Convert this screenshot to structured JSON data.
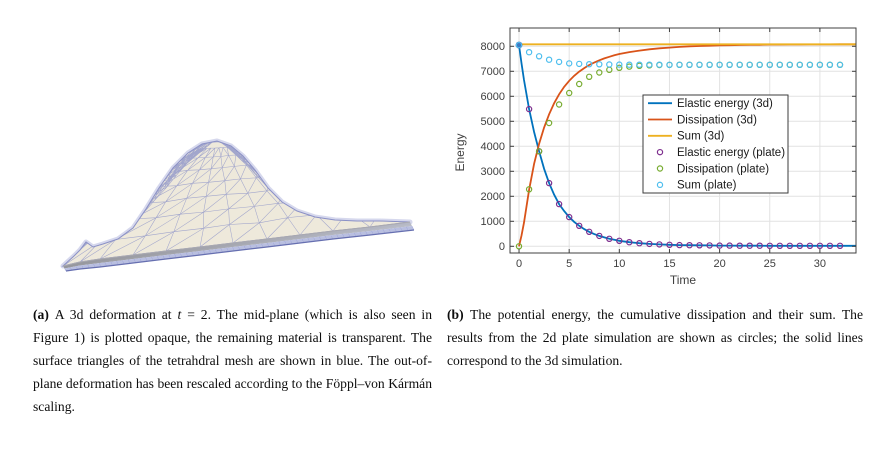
{
  "panel_a": {
    "caption_segments": [
      {
        "style": "bold",
        "text": "(a) "
      },
      {
        "style": "normal",
        "text": "A 3d deformation at "
      },
      {
        "style": "italic",
        "text": "t"
      },
      {
        "style": "normal",
        "text": " = 2.  The mid-plane (which is also seen in Figure 1) is plotted opaque, the remaining material is transparent. The surface triangles of the tetrahdral mesh are shown in blue. The out-of-plane deformation has been rescaled according to the Föppl–von Kármán scaling."
      }
    ],
    "mesh_colors": {
      "surface": "#EEE9DB",
      "wire": "#8F95C8",
      "halo": "#A3A9D8",
      "outline": "#8A90C6",
      "shadow_dark": "#8E8F94",
      "shadow_light": "#B3B6C2",
      "side_band": "#B9BFE0",
      "side_hatch": "#9CA3D6",
      "bottom_edge": "#666FB0",
      "contact": "#A9A9B0"
    }
  },
  "panel_b": {
    "caption_segments": [
      {
        "style": "bold",
        "text": "(b) "
      },
      {
        "style": "normal",
        "text": "The potential energy, the cumulative dissipation and their sum. The results from the 2d plate simulation are shown as circles; the solid lines correspond to the 3d simulation."
      }
    ]
  },
  "chart_data": {
    "type": "line",
    "title": "",
    "xlabel": "Time",
    "ylabel": "Energy",
    "xlim": [
      -0.9,
      33.6
    ],
    "ylim": [
      -268,
      8732
    ],
    "xticks": [
      0,
      5,
      10,
      15,
      20,
      25,
      30
    ],
    "yticks": [
      0,
      1000,
      2000,
      3000,
      4000,
      5000,
      6000,
      7000,
      8000
    ],
    "grid": true,
    "legend_position": "right-center",
    "colors": {
      "axis": "#404040",
      "grid": "#E2E2E2",
      "tick_label": "#404040",
      "legend_border": "#3b3b3b"
    },
    "start_marker": {
      "x": 0,
      "y": 8050,
      "color": "#3A7BC4",
      "radius": 3.4
    },
    "series": [
      {
        "name": "Elastic energy (3d)",
        "type": "line",
        "color": "#0072BD",
        "x": [
          0,
          0.25,
          0.5,
          1,
          1.5,
          2,
          2.5,
          3,
          3.5,
          4,
          4.5,
          5,
          5.5,
          6,
          6.5,
          7,
          7.5,
          8,
          8.5,
          9,
          9.5,
          10,
          11,
          12,
          13,
          14,
          15,
          16,
          17,
          18,
          19,
          20,
          21,
          22,
          23,
          24,
          25,
          26,
          27,
          28,
          29,
          30,
          31,
          32,
          33.6
        ],
        "y": [
          8050,
          7320,
          6650,
          5490,
          4570,
          3800,
          3100,
          2530,
          2070,
          1690,
          1410,
          1170,
          975,
          820,
          690,
          580,
          490,
          415,
          355,
          300,
          258,
          220,
          165,
          125,
          95,
          75,
          60,
          50,
          45,
          40,
          35,
          30,
          30,
          25,
          25,
          25,
          20,
          20,
          20,
          20,
          20,
          20,
          20,
          20,
          20
        ]
      },
      {
        "name": "Dissipation (3d)",
        "type": "line",
        "color": "#D95319",
        "x": [
          0,
          0.25,
          0.5,
          1,
          1.5,
          2,
          2.5,
          3,
          3.5,
          4,
          4.5,
          5,
          5.5,
          6,
          6.5,
          7,
          7.5,
          8,
          8.5,
          9,
          9.5,
          10,
          11,
          12,
          13,
          14,
          15,
          16,
          17,
          18,
          19,
          20,
          21,
          22,
          23,
          24,
          25,
          26,
          27,
          28,
          29,
          30,
          31,
          32,
          33.6
        ],
        "y": [
          0,
          430,
          950,
          2260,
          3300,
          4100,
          4750,
          5280,
          5720,
          6080,
          6380,
          6620,
          6820,
          6990,
          7130,
          7250,
          7350,
          7440,
          7515,
          7580,
          7640,
          7690,
          7770,
          7830,
          7880,
          7920,
          7950,
          7975,
          7995,
          8010,
          8025,
          8035,
          8045,
          8052,
          8057,
          8062,
          8066,
          8069,
          8071,
          8073,
          8075,
          8076,
          8077,
          8078,
          8080
        ]
      },
      {
        "name": "Sum (3d)",
        "type": "line",
        "color": "#EDB120",
        "x": [
          0,
          33.6
        ],
        "y": [
          8080,
          8080
        ]
      },
      {
        "name": "Elastic energy (plate)",
        "type": "scatter",
        "color": "#7E2F8E",
        "x": [
          0,
          1,
          2,
          3,
          4,
          5,
          6,
          7,
          8,
          9,
          10,
          11,
          12,
          13,
          14,
          15,
          16,
          17,
          18,
          19,
          20,
          21,
          22,
          23,
          24,
          25,
          26,
          27,
          28,
          29,
          30,
          31,
          32
        ],
        "y": [
          8050,
          5490,
          3800,
          2530,
          1690,
          1170,
          820,
          580,
          415,
          300,
          220,
          165,
          125,
          95,
          75,
          60,
          50,
          45,
          40,
          35,
          30,
          30,
          25,
          25,
          25,
          20,
          20,
          20,
          20,
          20,
          20,
          20,
          20
        ]
      },
      {
        "name": "Dissipation (plate)",
        "type": "scatter",
        "color": "#77AC30",
        "x": [
          0,
          1,
          2,
          3,
          4,
          5,
          6,
          7,
          8,
          9,
          10,
          11,
          12,
          13,
          14,
          15,
          16,
          17,
          18,
          19,
          20,
          21,
          22,
          23,
          24,
          25,
          26,
          27,
          28,
          29,
          30,
          31,
          32
        ],
        "y": [
          0,
          2280,
          3800,
          4930,
          5670,
          6130,
          6490,
          6780,
          6950,
          7060,
          7140,
          7190,
          7220,
          7240,
          7250,
          7255,
          7258,
          7259,
          7260,
          7260,
          7260,
          7260,
          7260,
          7260,
          7260,
          7260,
          7260,
          7260,
          7260,
          7260,
          7260,
          7260,
          7260
        ]
      },
      {
        "name": "Sum (plate)",
        "type": "scatter",
        "color": "#4DBEEE",
        "x": [
          0,
          1,
          2,
          3,
          4,
          5,
          6,
          7,
          8,
          9,
          10,
          11,
          12,
          13,
          14,
          15,
          16,
          17,
          18,
          19,
          20,
          21,
          22,
          23,
          24,
          25,
          26,
          27,
          28,
          29,
          30,
          31,
          32
        ],
        "y": [
          8050,
          7765,
          7600,
          7465,
          7375,
          7315,
          7295,
          7285,
          7278,
          7272,
          7268,
          7266,
          7265,
          7264,
          7263,
          7262,
          7262,
          7261,
          7261,
          7260,
          7260,
          7260,
          7260,
          7260,
          7260,
          7260,
          7260,
          7260,
          7260,
          7260,
          7260,
          7260,
          7260
        ]
      }
    ]
  }
}
